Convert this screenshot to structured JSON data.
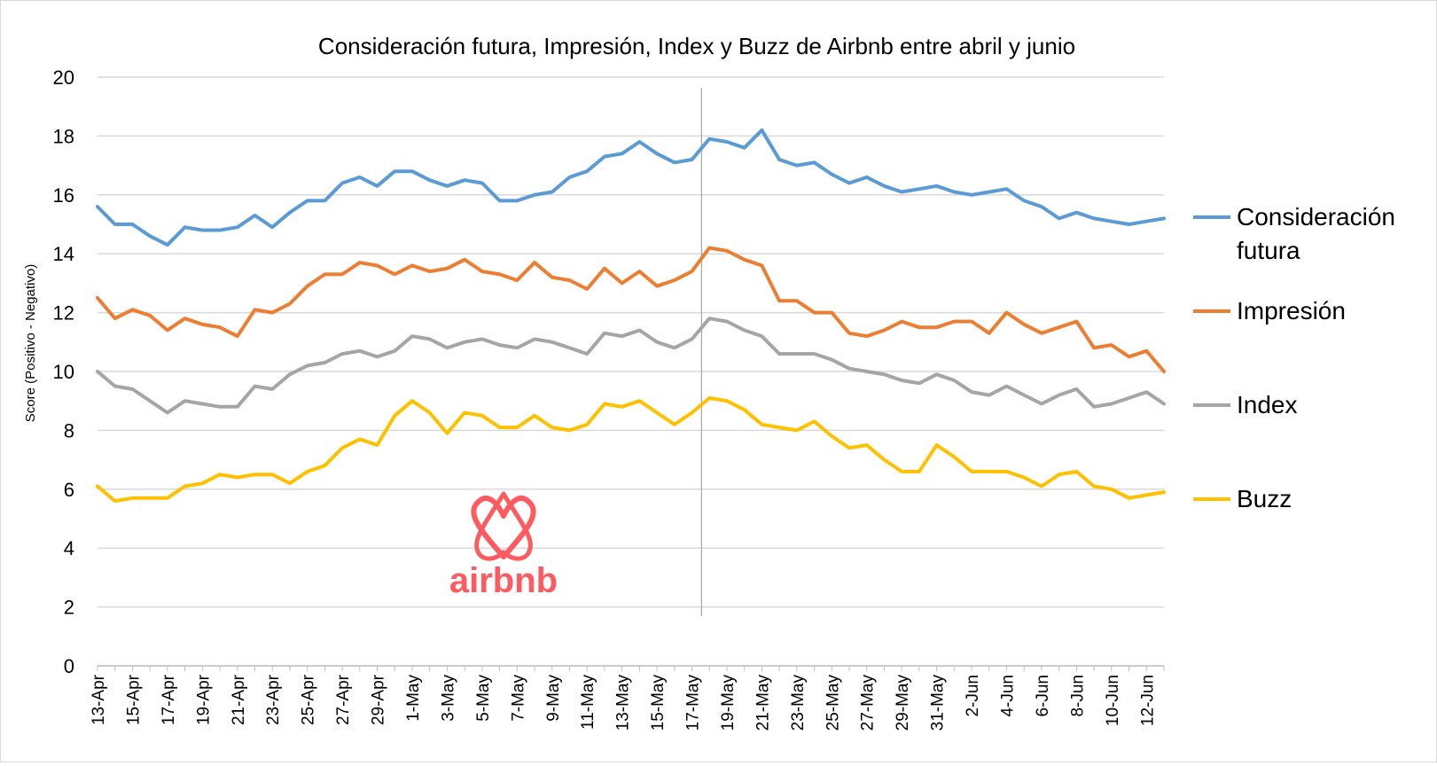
{
  "chart_data": {
    "type": "line",
    "title": "Consideración futura, Impresión, Index y Buzz de Airbnb entre abril y junio",
    "ylabel": "Score (Positivo - Negativo)",
    "xlabel": "",
    "ylim": [
      0,
      20
    ],
    "yticks": [
      "0",
      "2",
      "4",
      "6",
      "8",
      "10",
      "12",
      "14",
      "16",
      "18",
      "20"
    ],
    "grid": true,
    "legend_position": "right",
    "x": [
      "13-Apr",
      "14-Apr",
      "15-Apr",
      "16-Apr",
      "17-Apr",
      "18-Apr",
      "19-Apr",
      "20-Apr",
      "21-Apr",
      "22-Apr",
      "23-Apr",
      "24-Apr",
      "25-Apr",
      "26-Apr",
      "27-Apr",
      "28-Apr",
      "29-Apr",
      "30-Apr",
      "1-May",
      "2-May",
      "3-May",
      "4-May",
      "5-May",
      "6-May",
      "7-May",
      "8-May",
      "9-May",
      "10-May",
      "11-May",
      "12-May",
      "13-May",
      "14-May",
      "15-May",
      "16-May",
      "17-May",
      "18-May",
      "19-May",
      "20-May",
      "21-May",
      "22-May",
      "23-May",
      "24-May",
      "25-May",
      "26-May",
      "27-May",
      "28-May",
      "29-May",
      "30-May",
      "31-May",
      "1-Jun",
      "2-Jun",
      "3-Jun",
      "4-Jun",
      "5-Jun",
      "6-Jun",
      "7-Jun",
      "8-Jun",
      "9-Jun",
      "10-Jun",
      "11-Jun",
      "12-Jun",
      "13-Jun"
    ],
    "x_tick_labels": [
      "13-Apr",
      "15-Apr",
      "17-Apr",
      "19-Apr",
      "21-Apr",
      "23-Apr",
      "25-Apr",
      "27-Apr",
      "29-Apr",
      "1-May",
      "3-May",
      "5-May",
      "7-May",
      "9-May",
      "11-May",
      "13-May",
      "15-May",
      "17-May",
      "19-May",
      "21-May",
      "23-May",
      "25-May",
      "27-May",
      "29-May",
      "31-May",
      "2-Jun",
      "4-Jun",
      "6-Jun",
      "8-Jun",
      "10-Jun",
      "12-Jun"
    ],
    "vertical_marker_x": "18-May",
    "series": [
      {
        "name": "Consideración futura",
        "color": "#5b9bd5",
        "values": [
          15.6,
          15.0,
          15.0,
          14.6,
          14.3,
          14.9,
          14.8,
          14.8,
          14.9,
          15.3,
          14.9,
          15.4,
          15.8,
          15.8,
          16.4,
          16.6,
          16.3,
          16.8,
          16.8,
          16.5,
          16.3,
          16.5,
          16.4,
          15.8,
          15.8,
          16.0,
          16.1,
          16.6,
          16.8,
          17.3,
          17.4,
          17.8,
          17.4,
          17.1,
          17.2,
          17.9,
          17.8,
          17.6,
          18.2,
          17.2,
          17.0,
          17.1,
          16.7,
          16.4,
          16.6,
          16.3,
          16.1,
          16.2,
          16.3,
          16.1,
          16.0,
          16.1,
          16.2,
          15.8,
          15.6,
          15.2,
          15.4,
          15.2,
          15.1,
          15.0,
          15.1,
          15.2
        ]
      },
      {
        "name": "Impresión",
        "color": "#ed7d31",
        "values": [
          12.5,
          11.8,
          12.1,
          11.9,
          11.4,
          11.8,
          11.6,
          11.5,
          11.2,
          12.1,
          12.0,
          12.3,
          12.9,
          13.3,
          13.3,
          13.7,
          13.6,
          13.3,
          13.6,
          13.4,
          13.5,
          13.8,
          13.4,
          13.3,
          13.1,
          13.7,
          13.2,
          13.1,
          12.8,
          13.5,
          13.0,
          13.4,
          12.9,
          13.1,
          13.4,
          14.2,
          14.1,
          13.8,
          13.6,
          12.4,
          12.4,
          12.0,
          12.0,
          11.3,
          11.2,
          11.4,
          11.7,
          11.5,
          11.5,
          11.7,
          11.7,
          11.3,
          12.0,
          11.6,
          11.3,
          11.5,
          11.7,
          10.8,
          10.9,
          10.5,
          10.7,
          10.0
        ]
      },
      {
        "name": "Index",
        "color": "#a5a5a5",
        "values": [
          10.0,
          9.5,
          9.4,
          9.0,
          8.6,
          9.0,
          8.9,
          8.8,
          8.8,
          9.5,
          9.4,
          9.9,
          10.2,
          10.3,
          10.6,
          10.7,
          10.5,
          10.7,
          11.2,
          11.1,
          10.8,
          11.0,
          11.1,
          10.9,
          10.8,
          11.1,
          11.0,
          10.8,
          10.6,
          11.3,
          11.2,
          11.4,
          11.0,
          10.8,
          11.1,
          11.8,
          11.7,
          11.4,
          11.2,
          10.6,
          10.6,
          10.6,
          10.4,
          10.1,
          10.0,
          9.9,
          9.7,
          9.6,
          9.9,
          9.7,
          9.3,
          9.2,
          9.5,
          9.2,
          8.9,
          9.2,
          9.4,
          8.8,
          8.9,
          9.1,
          9.3,
          8.9
        ]
      },
      {
        "name": "Buzz",
        "color": "#ffc000",
        "values": [
          6.1,
          5.6,
          5.7,
          5.7,
          5.7,
          6.1,
          6.2,
          6.5,
          6.4,
          6.5,
          6.5,
          6.2,
          6.6,
          6.8,
          7.4,
          7.7,
          7.5,
          8.5,
          9.0,
          8.6,
          7.9,
          8.6,
          8.5,
          8.1,
          8.1,
          8.5,
          8.1,
          8.0,
          8.2,
          8.9,
          8.8,
          9.0,
          8.6,
          8.2,
          8.6,
          9.1,
          9.0,
          8.7,
          8.2,
          8.1,
          8.0,
          8.3,
          7.8,
          7.4,
          7.5,
          7.0,
          6.6,
          6.6,
          7.5,
          7.1,
          6.6,
          6.6,
          6.6,
          6.4,
          6.1,
          6.5,
          6.6,
          6.1,
          6.0,
          5.7,
          5.8,
          5.9
        ]
      }
    ]
  },
  "logo": {
    "brand_text": "airbnb",
    "color": "#ff5a5f"
  }
}
